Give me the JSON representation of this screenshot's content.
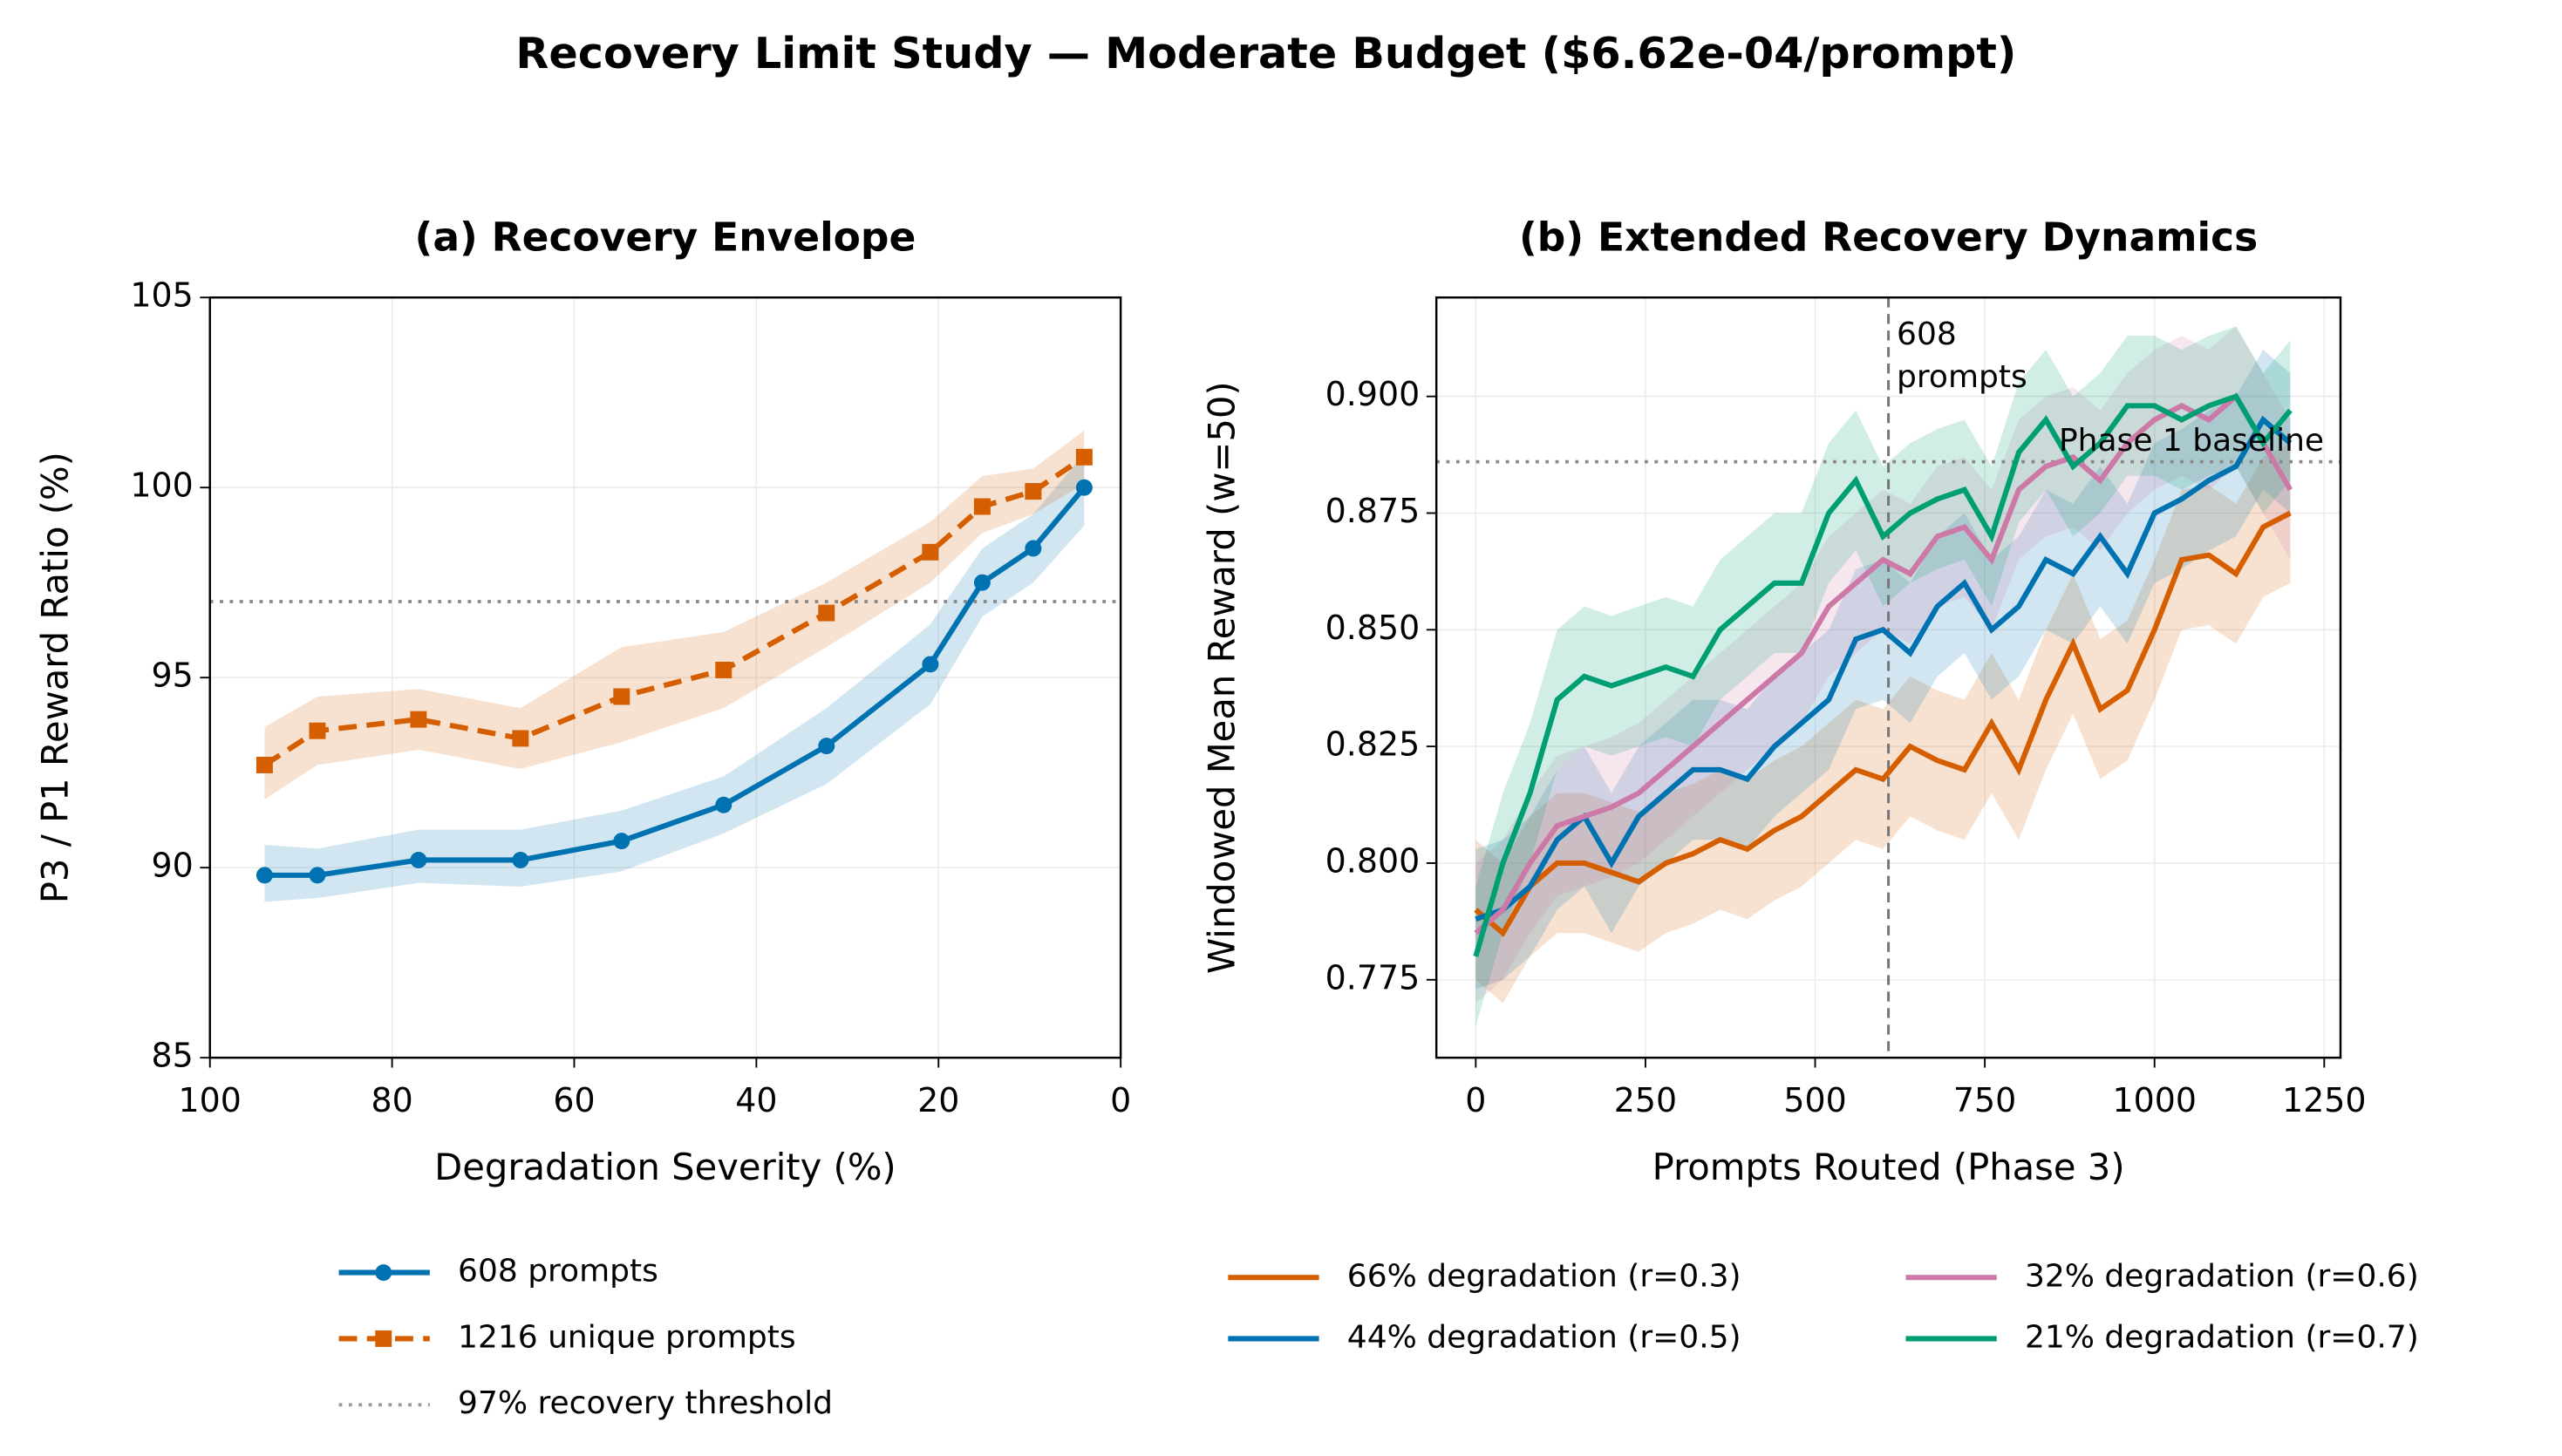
{
  "title": "Recovery Limit Study — Moderate Budget ($6.62e-04/prompt)",
  "chart_data": [
    {
      "type": "line",
      "title": "(a) Recovery Envelope",
      "x_label": "Degradation Severity (%)",
      "y_label": "P3 / P1 Reward Ratio (%)",
      "x": [
        94.0,
        88.2,
        77.1,
        65.9,
        54.8,
        43.6,
        32.3,
        20.9,
        15.2,
        9.6,
        4.0
      ],
      "series": [
        {
          "name": "608 prompts",
          "color": "#0072b2",
          "marker": "circle",
          "dashed": false,
          "values": [
            89.8,
            89.8,
            90.2,
            90.2,
            90.7,
            91.65,
            93.2,
            95.35,
            97.5,
            98.4,
            100.0
          ],
          "lower": [
            89.1,
            89.2,
            89.6,
            89.5,
            89.9,
            90.9,
            92.2,
            94.3,
            96.6,
            97.5,
            99.0
          ],
          "upper": [
            90.6,
            90.5,
            91.0,
            91.0,
            91.5,
            92.4,
            94.2,
            96.4,
            98.4,
            99.3,
            100.9
          ]
        },
        {
          "name": "1216 unique prompts",
          "color": "#d55e00",
          "marker": "square",
          "dashed": true,
          "values": [
            92.7,
            93.6,
            93.9,
            93.4,
            94.5,
            95.2,
            96.7,
            98.3,
            99.5,
            99.9,
            100.8
          ],
          "lower": [
            91.8,
            92.7,
            93.1,
            92.6,
            93.3,
            94.2,
            95.8,
            97.5,
            98.8,
            99.3,
            100.1
          ],
          "upper": [
            93.7,
            94.5,
            94.7,
            94.2,
            95.8,
            96.2,
            97.5,
            99.1,
            100.3,
            100.5,
            101.5
          ]
        }
      ],
      "hline": {
        "value": 97,
        "name": "97% recovery threshold"
      },
      "xlim": [
        100,
        0
      ],
      "xticks": [
        100,
        80,
        60,
        40,
        20,
        0
      ],
      "ylim": [
        85,
        105
      ],
      "yticks": [
        85,
        90,
        95,
        100,
        105
      ],
      "grid": true,
      "legend": "below"
    },
    {
      "type": "line",
      "title": "(b) Extended Recovery Dynamics",
      "x_label": "Prompts Routed (Phase 3)",
      "y_label": "Windowed Mean Reward (w=50)",
      "x": [
        0,
        40,
        80,
        120,
        160,
        200,
        240,
        280,
        320,
        360,
        400,
        440,
        480,
        520,
        560,
        600,
        640,
        680,
        720,
        760,
        800,
        840,
        880,
        920,
        960,
        1000,
        1040,
        1080,
        1120,
        1160,
        1200
      ],
      "series": [
        {
          "name": "66% degradation (r=0.3)",
          "color": "#d55e00",
          "values": [
            0.79,
            0.785,
            0.795,
            0.8,
            0.8,
            0.798,
            0.796,
            0.8,
            0.802,
            0.805,
            0.803,
            0.807,
            0.81,
            0.815,
            0.82,
            0.818,
            0.825,
            0.822,
            0.82,
            0.83,
            0.82,
            0.835,
            0.847,
            0.833,
            0.837,
            0.85,
            0.865,
            0.866,
            0.862,
            0.872,
            0.875
          ],
          "lower": [
            0.775,
            0.77,
            0.78,
            0.785,
            0.785,
            0.783,
            0.781,
            0.785,
            0.787,
            0.79,
            0.788,
            0.792,
            0.795,
            0.8,
            0.805,
            0.803,
            0.81,
            0.807,
            0.805,
            0.815,
            0.805,
            0.82,
            0.832,
            0.818,
            0.822,
            0.835,
            0.85,
            0.851,
            0.847,
            0.857,
            0.86
          ],
          "upper": [
            0.805,
            0.8,
            0.81,
            0.815,
            0.815,
            0.813,
            0.811,
            0.815,
            0.817,
            0.82,
            0.818,
            0.822,
            0.825,
            0.83,
            0.835,
            0.833,
            0.84,
            0.837,
            0.835,
            0.845,
            0.835,
            0.85,
            0.862,
            0.848,
            0.852,
            0.865,
            0.88,
            0.881,
            0.877,
            0.887,
            0.89
          ]
        },
        {
          "name": "44% degradation (r=0.5)",
          "color": "#0072b2",
          "values": [
            0.788,
            0.79,
            0.795,
            0.805,
            0.81,
            0.8,
            0.81,
            0.815,
            0.82,
            0.82,
            0.818,
            0.825,
            0.83,
            0.835,
            0.848,
            0.85,
            0.845,
            0.855,
            0.86,
            0.85,
            0.855,
            0.865,
            0.862,
            0.87,
            0.862,
            0.875,
            0.878,
            0.882,
            0.885,
            0.895,
            0.89
          ],
          "lower": [
            0.773,
            0.775,
            0.78,
            0.79,
            0.795,
            0.785,
            0.795,
            0.8,
            0.805,
            0.805,
            0.803,
            0.81,
            0.815,
            0.82,
            0.833,
            0.835,
            0.83,
            0.84,
            0.845,
            0.835,
            0.84,
            0.85,
            0.847,
            0.855,
            0.847,
            0.86,
            0.863,
            0.867,
            0.87,
            0.88,
            0.875
          ],
          "upper": [
            0.803,
            0.805,
            0.81,
            0.82,
            0.825,
            0.815,
            0.825,
            0.83,
            0.835,
            0.835,
            0.833,
            0.84,
            0.845,
            0.85,
            0.863,
            0.865,
            0.86,
            0.87,
            0.875,
            0.865,
            0.87,
            0.88,
            0.877,
            0.885,
            0.877,
            0.89,
            0.893,
            0.897,
            0.9,
            0.91,
            0.905
          ]
        },
        {
          "name": "32% degradation (r=0.6)",
          "color": "#cc79a7",
          "values": [
            0.785,
            0.79,
            0.8,
            0.808,
            0.81,
            0.812,
            0.815,
            0.82,
            0.825,
            0.83,
            0.835,
            0.84,
            0.845,
            0.855,
            0.86,
            0.865,
            0.862,
            0.87,
            0.872,
            0.865,
            0.88,
            0.885,
            0.887,
            0.882,
            0.89,
            0.895,
            0.898,
            0.895,
            0.9,
            0.89,
            0.88
          ],
          "lower": [
            0.77,
            0.775,
            0.785,
            0.793,
            0.795,
            0.797,
            0.8,
            0.805,
            0.81,
            0.815,
            0.82,
            0.825,
            0.83,
            0.84,
            0.845,
            0.85,
            0.847,
            0.855,
            0.857,
            0.85,
            0.865,
            0.87,
            0.872,
            0.867,
            0.875,
            0.88,
            0.883,
            0.88,
            0.885,
            0.875,
            0.865
          ],
          "upper": [
            0.8,
            0.805,
            0.815,
            0.823,
            0.825,
            0.827,
            0.83,
            0.835,
            0.84,
            0.845,
            0.85,
            0.855,
            0.86,
            0.87,
            0.875,
            0.88,
            0.877,
            0.885,
            0.887,
            0.88,
            0.895,
            0.9,
            0.902,
            0.897,
            0.905,
            0.91,
            0.913,
            0.91,
            0.915,
            0.905,
            0.895
          ]
        },
        {
          "name": "21% degradation (r=0.7)",
          "color": "#009e73",
          "values": [
            0.78,
            0.8,
            0.815,
            0.835,
            0.84,
            0.838,
            0.84,
            0.842,
            0.84,
            0.85,
            0.855,
            0.86,
            0.86,
            0.875,
            0.882,
            0.87,
            0.875,
            0.878,
            0.88,
            0.87,
            0.888,
            0.895,
            0.885,
            0.89,
            0.898,
            0.898,
            0.895,
            0.898,
            0.9,
            0.89,
            0.897
          ],
          "lower": [
            0.765,
            0.785,
            0.8,
            0.82,
            0.825,
            0.823,
            0.825,
            0.827,
            0.825,
            0.835,
            0.84,
            0.845,
            0.845,
            0.86,
            0.867,
            0.855,
            0.86,
            0.863,
            0.865,
            0.855,
            0.873,
            0.88,
            0.87,
            0.875,
            0.883,
            0.883,
            0.88,
            0.883,
            0.885,
            0.875,
            0.882
          ],
          "upper": [
            0.795,
            0.815,
            0.83,
            0.85,
            0.855,
            0.853,
            0.855,
            0.857,
            0.855,
            0.865,
            0.87,
            0.875,
            0.875,
            0.89,
            0.897,
            0.885,
            0.89,
            0.893,
            0.895,
            0.885,
            0.903,
            0.91,
            0.9,
            0.905,
            0.913,
            0.913,
            0.91,
            0.913,
            0.915,
            0.905,
            0.912
          ]
        }
      ],
      "hline": {
        "value": 0.886,
        "label": "Phase 1 baseline"
      },
      "vline": {
        "value": 608,
        "label": [
          "608",
          "prompts"
        ]
      },
      "xlim": [
        -58,
        1274
      ],
      "xticks": [
        0,
        250,
        500,
        750,
        1000,
        1250
      ],
      "ylim": [
        0.7583,
        0.9212
      ],
      "yticks": [
        0.775,
        {
          "value": 0.8,
          "label": "0.800"
        },
        0.825,
        {
          "value": 0.85,
          "label": "0.850"
        },
        0.875,
        {
          "value": 0.9,
          "label": "0.900"
        }
      ],
      "grid": true,
      "legend": "below"
    }
  ]
}
